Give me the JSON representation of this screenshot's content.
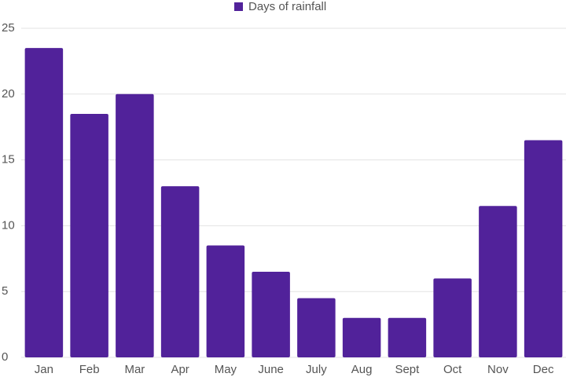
{
  "chart_data": {
    "type": "bar",
    "categories": [
      "Jan",
      "Feb",
      "Mar",
      "Apr",
      "May",
      "June",
      "July",
      "Aug",
      "Sept",
      "Oct",
      "Nov",
      "Dec"
    ],
    "series": [
      {
        "name": "Days of rainfall",
        "color": "#51229a",
        "values": [
          23.5,
          18.5,
          20,
          13,
          8.5,
          6.5,
          4.5,
          3,
          3,
          6,
          11.5,
          16.5
        ]
      }
    ],
    "ylim": [
      0,
      25
    ],
    "yticks": [
      0,
      5,
      10,
      15,
      20,
      25
    ],
    "grid": true,
    "legend": "top"
  }
}
